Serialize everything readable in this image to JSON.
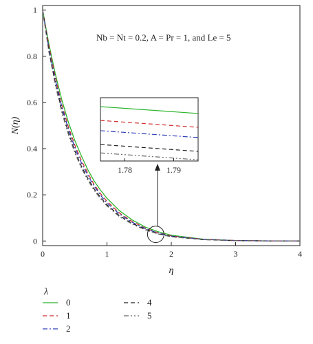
{
  "chart_data": {
    "type": "line",
    "title": "",
    "xlabel": "η",
    "ylabel": "N(η)",
    "xlim": [
      0,
      4
    ],
    "ylim": [
      -0.02,
      1.02
    ],
    "x_ticks": [
      "0",
      "1",
      "2",
      "3",
      "4"
    ],
    "y_ticks": [
      "0",
      "0.2",
      "0.4",
      "0.6",
      "0.8",
      "1"
    ],
    "grid": false,
    "annotation": "Nb = Nt = 0.2, A = Pr = 1, and Le = 5",
    "legend": {
      "title": "λ",
      "placement": "bottom-left, below plot"
    },
    "x": [
      0,
      0.1,
      0.2,
      0.3,
      0.4,
      0.5,
      0.6,
      0.7,
      0.8,
      0.9,
      1.0,
      1.2,
      1.4,
      1.6,
      1.8,
      2.0,
      2.5,
      3.0,
      3.5,
      4.0
    ],
    "series": [
      {
        "name": "0",
        "color": "#2db52d",
        "dash": "solid",
        "values": [
          1.0,
          0.85,
          0.72,
          0.61,
          0.515,
          0.435,
          0.37,
          0.31,
          0.26,
          0.22,
          0.185,
          0.13,
          0.09,
          0.06,
          0.04,
          0.025,
          0.008,
          0.002,
          0.0005,
          0.0
        ]
      },
      {
        "name": "1",
        "color": "#d22b2b",
        "dash": "dash",
        "values": [
          1.0,
          0.84,
          0.705,
          0.59,
          0.495,
          0.415,
          0.35,
          0.295,
          0.245,
          0.205,
          0.172,
          0.12,
          0.083,
          0.055,
          0.035,
          0.022,
          0.007,
          0.002,
          0.0005,
          0.0
        ]
      },
      {
        "name": "2",
        "color": "#2f3fb8",
        "dash": "dashdot",
        "values": [
          1.0,
          0.83,
          0.695,
          0.58,
          0.485,
          0.405,
          0.34,
          0.285,
          0.238,
          0.198,
          0.165,
          0.115,
          0.08,
          0.053,
          0.034,
          0.021,
          0.007,
          0.002,
          0.0005,
          0.0
        ]
      },
      {
        "name": "4",
        "color": "#222222",
        "dash": "dash",
        "values": [
          1.0,
          0.82,
          0.68,
          0.565,
          0.47,
          0.39,
          0.325,
          0.272,
          0.226,
          0.188,
          0.157,
          0.108,
          0.075,
          0.05,
          0.031,
          0.019,
          0.006,
          0.0015,
          0.0004,
          0.0
        ]
      },
      {
        "name": "5",
        "color": "#666666",
        "dash": "dashdotdot",
        "values": [
          1.0,
          0.815,
          0.672,
          0.556,
          0.462,
          0.382,
          0.318,
          0.265,
          0.22,
          0.183,
          0.152,
          0.104,
          0.072,
          0.048,
          0.03,
          0.018,
          0.006,
          0.0015,
          0.0004,
          0.0
        ]
      }
    ],
    "inset": {
      "x_ticks": [
        "1.78",
        "1.79"
      ],
      "xlim": [
        1.775,
        1.795
      ],
      "zoom_center": [
        1.79,
        0.02
      ],
      "series_offsets": [
        0.95,
        0.72,
        0.55,
        0.32,
        0.18
      ]
    }
  }
}
